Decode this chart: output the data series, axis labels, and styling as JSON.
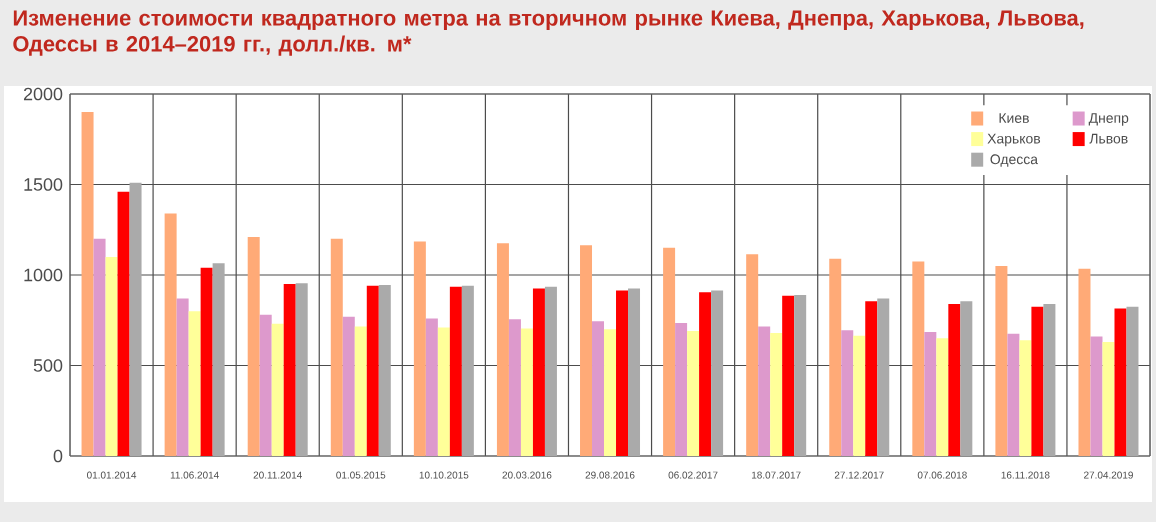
{
  "chart_data": {
    "type": "bar",
    "title": "Изменение стоимости квадратного метра на вторичном рынке Киева, Днепра, Харькова, Львова, Одессы в 2014–2019 гг., долл./кв. м*",
    "categories": [
      "01.01.2014",
      "11.06.2014",
      "20.11.2014",
      "01.05.2015",
      "10.10.2015",
      "20.03.2016",
      "29.08.2016",
      "06.02.2017",
      "18.07.2017",
      "27.12.2017",
      "07.06.2018",
      "16.11.2018",
      "27.04.2019"
    ],
    "series": [
      {
        "name": "Киев",
        "color": "#ffaa77",
        "values": [
          1900,
          1340,
          1210,
          1200,
          1185,
          1175,
          1165,
          1150,
          1115,
          1090,
          1075,
          1050,
          1035
        ]
      },
      {
        "name": "Днепр",
        "color": "#dd99cc",
        "values": [
          1200,
          870,
          780,
          770,
          760,
          755,
          745,
          735,
          715,
          695,
          685,
          675,
          660
        ]
      },
      {
        "name": "Харьков",
        "color": "#ffff99",
        "values": [
          1100,
          800,
          730,
          715,
          710,
          705,
          700,
          690,
          680,
          665,
          650,
          640,
          630
        ]
      },
      {
        "name": "Львов",
        "color": "#ff0000",
        "values": [
          1460,
          1040,
          950,
          940,
          935,
          925,
          915,
          905,
          885,
          855,
          840,
          825,
          815
        ]
      },
      {
        "name": "Одесса",
        "color": "#aaaaaa",
        "values": [
          1510,
          1065,
          955,
          945,
          940,
          935,
          925,
          915,
          890,
          870,
          855,
          840,
          825
        ]
      }
    ],
    "ylim": [
      0,
      2000
    ],
    "yticks": [
      0,
      500,
      1000,
      1500,
      2000
    ],
    "grid": true,
    "legend": "top right"
  }
}
